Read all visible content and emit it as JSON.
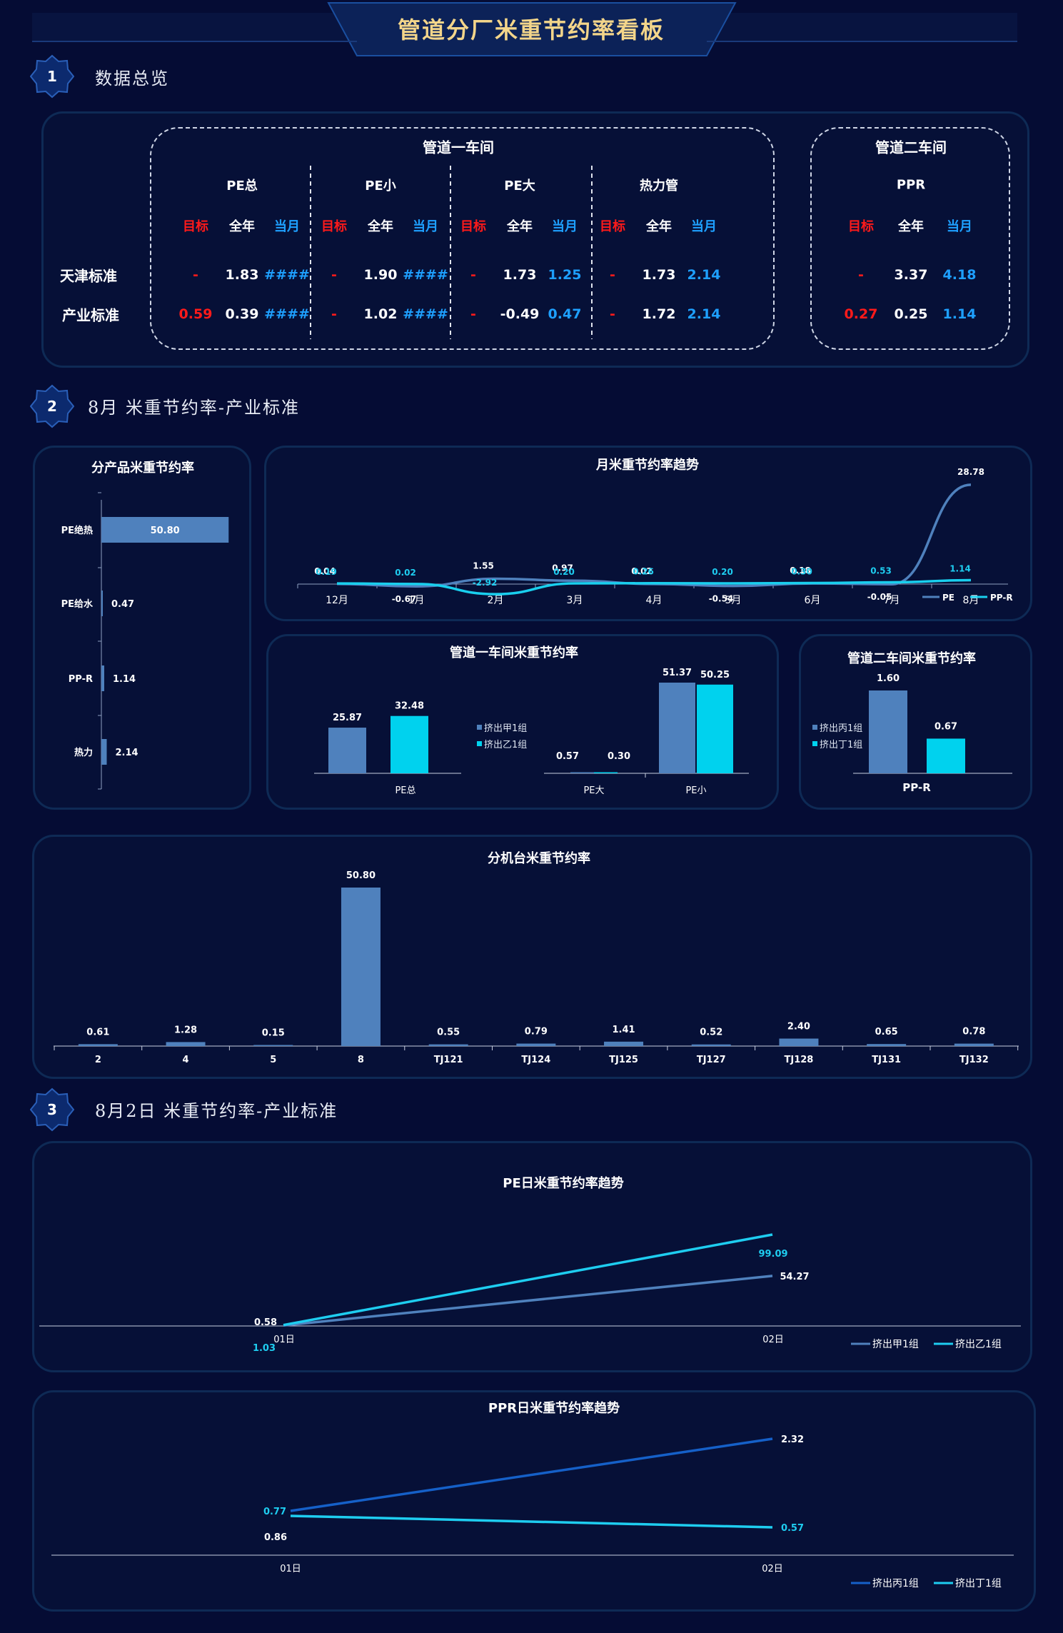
{
  "header": {
    "title": "管道分厂米重节约率看板"
  },
  "sections": [
    {
      "num": "1",
      "title": "数据总览"
    },
    {
      "num": "2",
      "title": "8月 米重节约率-产业标准"
    },
    {
      "num": "3",
      "title": "8月2日 米重节约率-产业标准"
    }
  ],
  "overview": {
    "workshop1_title": "管道一车间",
    "workshop2_title": "管道二车间",
    "row_labels": [
      "天津标准",
      "产业标准"
    ],
    "col_headers": [
      "目标",
      "全年",
      "当月"
    ],
    "groups": [
      {
        "name": "PE总",
        "rows": [
          [
            "-",
            "1.83",
            "####"
          ],
          [
            "0.59",
            "0.39",
            "####"
          ]
        ]
      },
      {
        "name": "PE小",
        "rows": [
          [
            "-",
            "1.90",
            "####"
          ],
          [
            "-",
            "1.02",
            "####"
          ]
        ]
      },
      {
        "name": "PE大",
        "rows": [
          [
            "-",
            "1.73",
            "1.25"
          ],
          [
            "-",
            "-0.49",
            "0.47"
          ]
        ]
      },
      {
        "name": "热力管",
        "rows": [
          [
            "-",
            "1.73",
            "2.14"
          ],
          [
            "-",
            "1.72",
            "2.14"
          ]
        ]
      },
      {
        "name": "PPR",
        "rows": [
          [
            "-",
            "3.37",
            "4.18"
          ],
          [
            "0.27",
            "0.25",
            "1.14"
          ]
        ]
      }
    ],
    "colors": {
      "target": "#ff1a1a",
      "annual": "#ffffff",
      "month": "#1ea0ff"
    }
  },
  "chart_data": [
    {
      "id": "product",
      "type": "bar",
      "orientation": "horizontal",
      "title": "分产品米重节约率",
      "categories": [
        "PE绝热",
        "PE给水",
        "PP-R",
        "热力"
      ],
      "values": [
        50.8,
        0.47,
        1.14,
        2.14
      ],
      "xlim": [
        0,
        55
      ]
    },
    {
      "id": "monthly",
      "type": "line",
      "title": "月米重节约率趋势",
      "categories": [
        "12月",
        "1月",
        "2月",
        "3月",
        "4月",
        "5月",
        "6月",
        "7月",
        "8月"
      ],
      "series": [
        {
          "name": "PE",
          "values": [
            0.04,
            -0.67,
            1.55,
            0.97,
            0.02,
            -0.54,
            0.18,
            -0.05,
            28.78
          ],
          "color": "#4f81bd"
        },
        {
          "name": "PP-R",
          "values": [
            0.19,
            0.02,
            -2.92,
            0.2,
            0.26,
            0.2,
            0.3,
            0.53,
            1.14
          ],
          "color": "#19cfee"
        }
      ],
      "ylim": [
        -5,
        30
      ]
    },
    {
      "id": "ws1",
      "type": "bar",
      "title": "管道一车间米重节约率",
      "categories": [
        "PE总",
        "PE大",
        "PE小"
      ],
      "series": [
        {
          "name": "挤出甲1组",
          "values": [
            25.87,
            0.57,
            51.37
          ],
          "color": "#4f81bd"
        },
        {
          "name": "挤出乙1组",
          "values": [
            32.48,
            0.3,
            50.25
          ],
          "color": "#00d2ee"
        }
      ]
    },
    {
      "id": "ws2",
      "type": "bar",
      "title": "管道二车间米重节约率",
      "categories": [
        "PP-R"
      ],
      "series": [
        {
          "name": "挤出丙1组",
          "values": [
            1.6
          ],
          "color": "#4f81bd"
        },
        {
          "name": "挤出丁1组",
          "values": [
            0.67
          ],
          "color": "#00d2ee"
        }
      ]
    },
    {
      "id": "machine",
      "type": "bar",
      "title": "分机台米重节约率",
      "categories": [
        "2",
        "4",
        "5",
        "8",
        "TJ121",
        "TJ124",
        "TJ125",
        "TJ127",
        "TJ128",
        "TJ131",
        "TJ132"
      ],
      "values": [
        0.61,
        1.28,
        0.15,
        50.8,
        0.55,
        0.79,
        1.41,
        0.52,
        2.4,
        0.65,
        0.78
      ],
      "ylim": [
        0,
        55
      ]
    },
    {
      "id": "pe_daily",
      "type": "line",
      "title": "PE日米重节约率趋势",
      "categories": [
        "01日",
        "02日"
      ],
      "series": [
        {
          "name": "挤出甲1组",
          "values": [
            0.58,
            54.27
          ],
          "color": "#4f81bd"
        },
        {
          "name": "挤出乙1组",
          "values": [
            1.03,
            99.09
          ],
          "color": "#1ecdf0"
        }
      ],
      "ylim": [
        0,
        110
      ]
    },
    {
      "id": "ppr_daily",
      "type": "line",
      "title": "PPR日米重节约率趋势",
      "categories": [
        "01日",
        "02日"
      ],
      "series": [
        {
          "name": "挤出丙1组",
          "values": [
            0.77,
            2.32
          ],
          "color": "#1560c8"
        },
        {
          "name": "挤出丁1组",
          "values": [
            0.86,
            0.57
          ],
          "color": "#1ecdf0"
        }
      ],
      "ylim": [
        0,
        2.6
      ]
    }
  ]
}
